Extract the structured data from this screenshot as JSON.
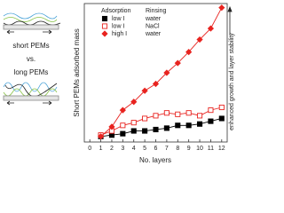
{
  "chart_data": {
    "type": "line",
    "y_label": "Short PEMs adsorbed mass",
    "x_label": "No. layers",
    "side_annotation": "enhanced growth and layer stability",
    "legend_headers": [
      "Adsorption",
      "Rinsing"
    ],
    "x": [
      1,
      2,
      3,
      4,
      5,
      6,
      7,
      8,
      9,
      10,
      11,
      12
    ],
    "xlim": [
      -0.5,
      12.5
    ],
    "xticks": [
      0,
      1,
      2,
      3,
      4,
      5,
      6,
      7,
      8,
      9,
      10,
      11,
      12
    ],
    "ylim": [
      0,
      100
    ],
    "series": [
      {
        "name": "low I",
        "rinsing": "water",
        "color": "#000000",
        "marker": "filled-square",
        "values": [
          4,
          5,
          6,
          8,
          8,
          9,
          10,
          12,
          12,
          13,
          15,
          17
        ]
      },
      {
        "name": "low I",
        "rinsing": "NaCl",
        "color": "#e8231f",
        "marker": "open-square",
        "values": [
          5,
          8,
          12,
          14,
          17,
          19,
          21,
          20,
          21,
          19,
          23,
          25
        ]
      },
      {
        "name": "high I",
        "rinsing": "water",
        "color": "#e8231f",
        "marker": "diamond",
        "values": [
          4,
          11,
          23,
          29,
          37,
          42,
          50,
          57,
          65,
          74,
          82,
          97
        ]
      }
    ],
    "illustration_labels": [
      "short PEMs",
      "vs.",
      "long PEMs"
    ]
  }
}
